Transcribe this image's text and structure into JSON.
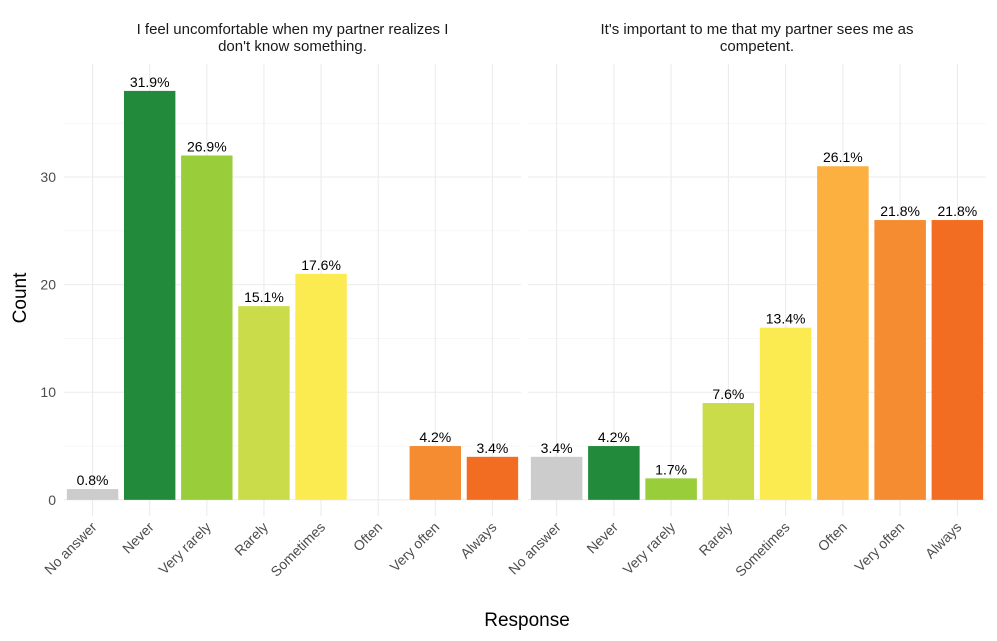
{
  "chart_data": {
    "type": "bar",
    "xlabel": "Response",
    "ylabel": "Count",
    "ylim": [
      0,
      40.5
    ],
    "yticks": [
      0,
      10,
      20,
      30
    ],
    "categories": [
      "No answer",
      "Never",
      "Very rarely",
      "Rarely",
      "Sometimes",
      "Often",
      "Very often",
      "Always"
    ],
    "colors": [
      "#cccccc",
      "#228b3b",
      "#9acd3a",
      "#cbdc4a",
      "#fbeb50",
      "#fbb040",
      "#f68c32",
      "#f26d21"
    ],
    "grid": true,
    "panels": [
      {
        "title_lines": [
          "I feel uncomfortable when my partner realizes I",
          "don't know something."
        ],
        "values": [
          1,
          38,
          32,
          18,
          21,
          0,
          5,
          4
        ],
        "labels": [
          "0.8%",
          "31.9%",
          "26.9%",
          "15.1%",
          "17.6%",
          "",
          "4.2%",
          "3.4%"
        ]
      },
      {
        "title_lines": [
          "It's important to me that my partner sees me as",
          "competent."
        ],
        "values": [
          4,
          5,
          2,
          9,
          16,
          31,
          26,
          26
        ],
        "labels": [
          "3.4%",
          "4.2%",
          "1.7%",
          "7.6%",
          "13.4%",
          "26.1%",
          "21.8%",
          "21.8%"
        ]
      }
    ]
  }
}
